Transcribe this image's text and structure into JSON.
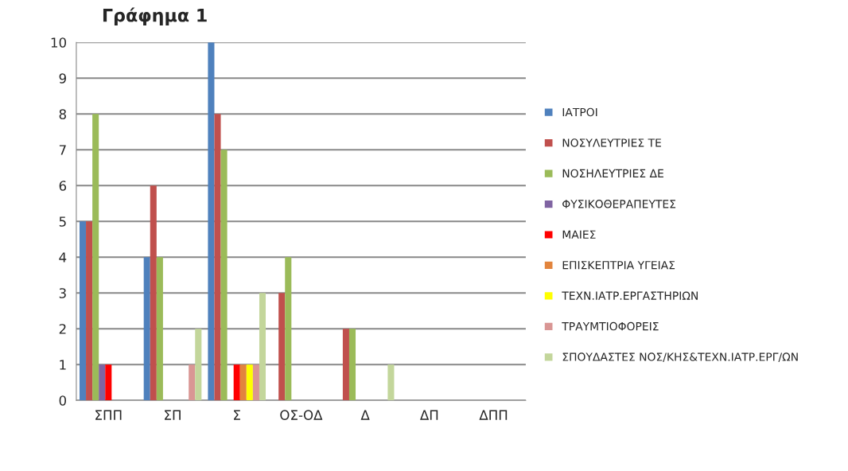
{
  "chart_data": {
    "type": "bar",
    "title": "Γράφημα 1",
    "categories": [
      "ΣΠΠ",
      "ΣΠ",
      "Σ",
      "ΟΣ-ΟΔ",
      "Δ",
      "ΔΠ",
      "ΔΠΠ"
    ],
    "series": [
      {
        "name": "ΙΑΤΡΟΙ",
        "color": "#4f81bd",
        "values": [
          5,
          4,
          10,
          0,
          0,
          0,
          0
        ]
      },
      {
        "name": "ΝΟΣΥΛΕΥΤΡΙΕΣ ΤΕ",
        "color": "#c0504d",
        "values": [
          5,
          6,
          8,
          3,
          2,
          0,
          0
        ]
      },
      {
        "name": "ΝΟΣΗΛΕΥΤΡΙΕΣ ΔΕ",
        "color": "#9bbb59",
        "values": [
          8,
          4,
          7,
          4,
          2,
          0,
          0
        ]
      },
      {
        "name": "ΦΥΣΙΚΟΘΕΡΑΠΕΥΤΕΣ",
        "color": "#8064a2",
        "values": [
          1,
          0,
          0,
          0,
          0,
          0,
          0
        ]
      },
      {
        "name": "ΜΑΙΕΣ",
        "color": "#ff0000",
        "values": [
          1,
          0,
          1,
          0,
          0,
          0,
          0
        ]
      },
      {
        "name": "ΕΠΙΣΚΕΠΤΡΙΑ ΥΓΕΙΑΣ",
        "color": "#e2843d",
        "values": [
          0,
          0,
          1,
          0,
          0,
          0,
          0
        ]
      },
      {
        "name": "ΤΕΧΝ.ΙΑΤΡ.ΕΡΓΑΣΤΗΡΙΩΝ",
        "color": "#ffff00",
        "values": [
          0,
          0,
          1,
          0,
          0,
          0,
          0
        ]
      },
      {
        "name": "ΤΡΑΥΜΤΙΟΦΟΡΕΙΣ",
        "color": "#d99694",
        "values": [
          0,
          1,
          1,
          0,
          0,
          0,
          0
        ]
      },
      {
        "name": "ΣΠΟΥΔΑΣΤΕΣ ΝΟΣ/ΚΗΣ&ΤΕΧΝ.ΙΑΤΡ.ΕΡΓ/ΩΝ",
        "color": "#c3d69b",
        "values": [
          0,
          2,
          3,
          0,
          1,
          0,
          0
        ]
      }
    ],
    "ylim": [
      0,
      10
    ],
    "yticks": [
      0,
      1,
      2,
      3,
      4,
      5,
      6,
      7,
      8,
      9,
      10
    ],
    "grid": "y",
    "legend": "right"
  }
}
